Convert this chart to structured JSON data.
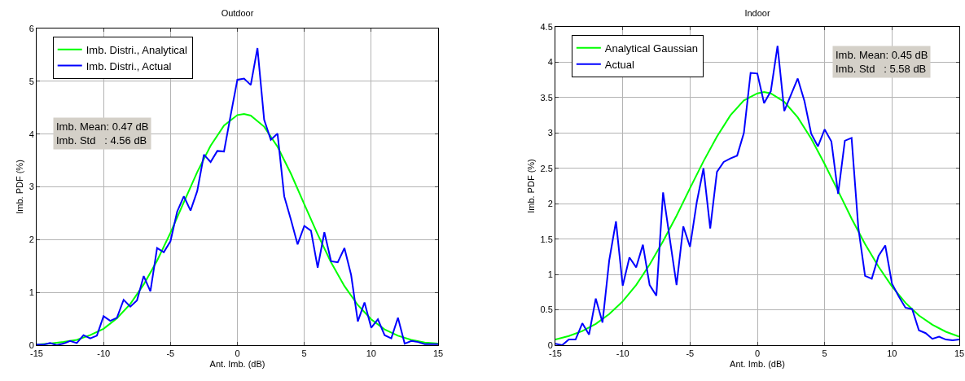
{
  "chart_data": [
    {
      "type": "line",
      "title": "Outdoor",
      "xlabel": "Ant. Imb. (dB)",
      "ylabel": "Imb. PDF (%)",
      "xlim": [
        -15,
        15
      ],
      "xticks": [
        -15,
        -10,
        -5,
        0,
        5,
        10,
        15
      ],
      "ylim": [
        0,
        6
      ],
      "yticks": [
        0,
        1,
        2,
        3,
        4,
        5,
        6
      ],
      "grid": true,
      "legend": "top left",
      "marker": "none",
      "line_style": "solid",
      "annotations": [
        "Imb. Mean: 0.47 dB\nImb. Std   : 4.56 dB"
      ],
      "series": [
        {
          "name": "Imb. Distri., Analytical",
          "color": "#00ff00",
          "x": [
            -15,
            -14,
            -13,
            -12,
            -11,
            -10,
            -9,
            -8,
            -7,
            -6,
            -5,
            -4,
            -3,
            -2,
            -1,
            0,
            0.5,
            1,
            2,
            3,
            4,
            5,
            6,
            7,
            8,
            9,
            10,
            11,
            12,
            13,
            14,
            15
          ],
          "values": [
            0.01,
            0.03,
            0.06,
            0.1,
            0.19,
            0.31,
            0.51,
            0.78,
            1.15,
            1.6,
            2.13,
            2.71,
            3.28,
            3.78,
            4.16,
            4.36,
            4.38,
            4.35,
            4.14,
            3.76,
            3.25,
            2.67,
            2.1,
            1.57,
            1.12,
            0.76,
            0.49,
            0.3,
            0.18,
            0.1,
            0.05,
            0.03
          ]
        },
        {
          "name": "Imb. Distri., Actual",
          "color": "#0000ff",
          "x": [
            -15,
            -14.5,
            -14,
            -13.5,
            -13,
            -12.5,
            -12,
            -11.5,
            -11,
            -10.5,
            -10,
            -9.5,
            -9,
            -8.5,
            -8,
            -7.5,
            -7,
            -6.5,
            -6,
            -5.5,
            -5,
            -4.5,
            -4,
            -3.5,
            -3,
            -2.5,
            -2,
            -1.5,
            -1,
            -0.5,
            0,
            0.5,
            1,
            1.5,
            2,
            2.5,
            3,
            3.5,
            4,
            4.5,
            5,
            5.5,
            6,
            6.5,
            7,
            7.5,
            8,
            8.5,
            9,
            9.5,
            10,
            10.5,
            11,
            11.5,
            12,
            12.5,
            13,
            13.5,
            14,
            14.5,
            15
          ],
          "values": [
            0.01,
            0.01,
            0.04,
            0,
            0.03,
            0.08,
            0.04,
            0.19,
            0.13,
            0.18,
            0.55,
            0.46,
            0.52,
            0.86,
            0.73,
            0.85,
            1.31,
            1.02,
            1.84,
            1.76,
            1.97,
            2.53,
            2.82,
            2.55,
            2.92,
            3.61,
            3.47,
            3.68,
            3.67,
            4.36,
            5.03,
            5.05,
            4.93,
            5.63,
            4.27,
            3.89,
            4.01,
            2.82,
            2.38,
            1.91,
            2.26,
            2.17,
            1.47,
            2.14,
            1.59,
            1.57,
            1.84,
            1.33,
            0.45,
            0.81,
            0.33,
            0.49,
            0.19,
            0.13,
            0.52,
            0.03,
            0.08,
            0.06,
            0.02,
            0.02,
            0.02
          ]
        }
      ]
    },
    {
      "type": "line",
      "title": "Indoor",
      "xlabel": "Ant. Imb. (dB)",
      "ylabel": "Imb. PDF (%)",
      "xlim": [
        -15,
        15
      ],
      "xticks": [
        -15,
        -10,
        -5,
        0,
        5,
        10,
        15
      ],
      "ylim": [
        0,
        4.5
      ],
      "yticks": [
        0,
        0.5,
        1,
        1.5,
        2,
        2.5,
        3,
        3.5,
        4,
        4.5
      ],
      "grid": true,
      "legend": "top left",
      "marker": "none",
      "line_style": "solid",
      "annotations": [
        "Imb. Mean: 0.45 dB\nImb. Std   : 5.58 dB"
      ],
      "series": [
        {
          "name": "Analytical Gaussian",
          "color": "#00ff00",
          "x": [
            -15,
            -14,
            -13,
            -12,
            -11,
            -10,
            -9,
            -8,
            -7,
            -6,
            -5,
            -4,
            -3,
            -2,
            -1,
            0,
            0.5,
            1,
            2,
            3,
            4,
            5,
            6,
            7,
            8,
            9,
            10,
            11,
            12,
            13,
            14,
            15
          ],
          "values": [
            0.08,
            0.13,
            0.2,
            0.3,
            0.44,
            0.62,
            0.85,
            1.14,
            1.47,
            1.83,
            2.22,
            2.6,
            2.95,
            3.25,
            3.46,
            3.56,
            3.58,
            3.56,
            3.44,
            3.22,
            2.92,
            2.56,
            2.18,
            1.79,
            1.43,
            1.11,
            0.83,
            0.6,
            0.42,
            0.29,
            0.19,
            0.12
          ]
        },
        {
          "name": "Actual",
          "color": "#0000ff",
          "x": [
            -15,
            -14.5,
            -14,
            -13.5,
            -13,
            -12.5,
            -12,
            -11.5,
            -11,
            -10.5,
            -10,
            -9.5,
            -9,
            -8.5,
            -8,
            -7.5,
            -7,
            -6.5,
            -6,
            -5.5,
            -5,
            -4.5,
            -4,
            -3.5,
            -3,
            -2.5,
            -2,
            -1.5,
            -1,
            -0.5,
            0,
            0.5,
            1,
            1.5,
            2,
            2.5,
            3,
            3.5,
            4,
            4.5,
            5,
            5.5,
            6,
            6.5,
            7,
            7.5,
            8,
            8.5,
            9,
            9.5,
            10,
            10.5,
            11,
            11.5,
            12,
            12.5,
            13,
            13.5,
            14,
            14.5,
            15
          ],
          "values": [
            0.02,
            0,
            0.08,
            0.08,
            0.31,
            0.15,
            0.66,
            0.32,
            1.2,
            1.75,
            0.84,
            1.24,
            1.1,
            1.42,
            0.85,
            0.7,
            2.16,
            1.5,
            0.85,
            1.68,
            1.39,
            2.02,
            2.5,
            1.65,
            2.45,
            2.59,
            2.64,
            2.68,
            3,
            3.85,
            3.84,
            3.42,
            3.59,
            4.23,
            3.31,
            3.54,
            3.77,
            3.45,
            2.99,
            2.81,
            3.05,
            2.88,
            2.14,
            2.89,
            2.93,
            1.66,
            0.98,
            0.94,
            1.26,
            1.41,
            0.87,
            0.69,
            0.53,
            0.51,
            0.21,
            0.17,
            0.09,
            0.12,
            0.08,
            0.07,
            0.08
          ]
        }
      ]
    }
  ]
}
